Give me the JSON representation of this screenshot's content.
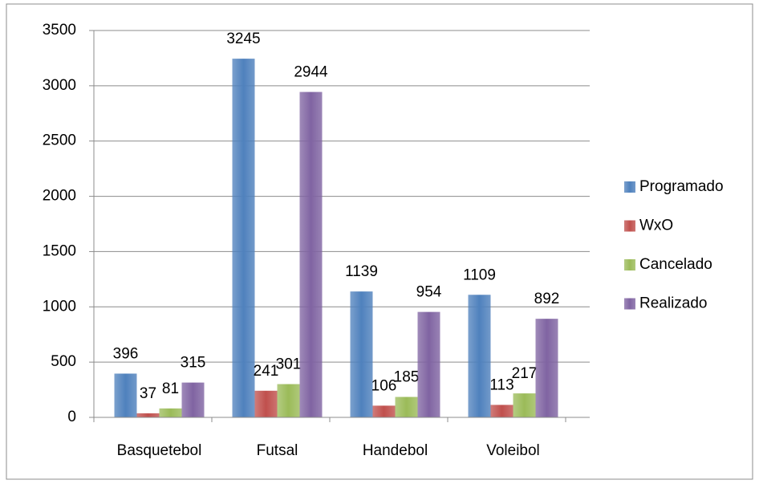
{
  "chart_data": {
    "type": "bar",
    "categories": [
      "Basquetebol",
      "Futsal",
      "Handebol",
      "Voleibol"
    ],
    "series": [
      {
        "name": "Programado",
        "color": "#4f81bd",
        "values": [
          396,
          3245,
          1139,
          1109
        ]
      },
      {
        "name": "WxO",
        "color": "#c0504d",
        "values": [
          37,
          241,
          106,
          113
        ]
      },
      {
        "name": "Cancelado",
        "color": "#9bbb59",
        "values": [
          81,
          301,
          185,
          217
        ]
      },
      {
        "name": "Realizado",
        "color": "#8064a2",
        "values": [
          315,
          2944,
          954,
          892
        ]
      }
    ],
    "ylim": [
      0,
      3500
    ],
    "yticks": [
      0,
      500,
      1000,
      1500,
      2000,
      2500,
      3000,
      3500
    ],
    "grid": true,
    "legend": "right"
  }
}
